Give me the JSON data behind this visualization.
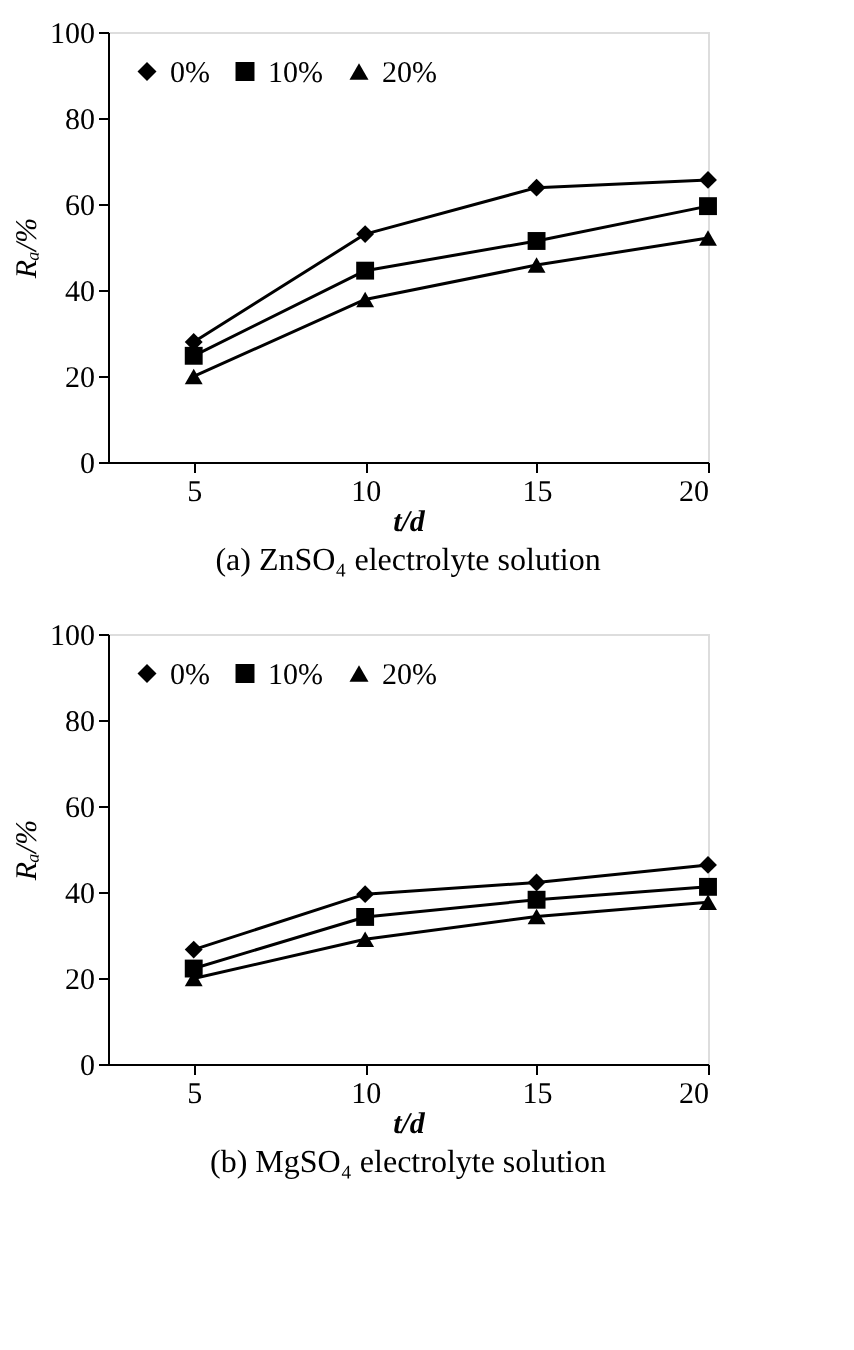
{
  "chart_data": [
    {
      "type": "line",
      "title": "(a) ZnSO₄ electrolyte solution",
      "xlabel": "t/d",
      "ylabel": "Rₐ/%",
      "x": [
        5,
        10,
        15,
        20
      ],
      "xlim": [
        2.5,
        20
      ],
      "xticks": [
        5,
        10,
        15,
        20
      ],
      "ylim": [
        0,
        100
      ],
      "yticks": [
        0,
        20,
        40,
        60,
        80,
        100
      ],
      "legend": "top left",
      "series": [
        {
          "name": "0%",
          "color": "#000000",
          "marker": "diamond",
          "values": [
            27.9,
            53,
            63.8,
            65.6
          ]
        },
        {
          "name": "10%",
          "color": "#000000",
          "marker": "square",
          "values": [
            24.7,
            44.5,
            51.4,
            59.5
          ]
        },
        {
          "name": "20%",
          "color": "#000000",
          "marker": "triangle",
          "values": [
            19.9,
            37.8,
            45.8,
            52.1
          ]
        }
      ]
    },
    {
      "type": "line",
      "title": "(b) MgSO₄ electrolyte solution",
      "xlabel": "t/d",
      "ylabel": "Rₐ/%",
      "x": [
        5,
        10,
        15,
        20
      ],
      "xlim": [
        2.5,
        20
      ],
      "xticks": [
        5,
        10,
        15,
        20
      ],
      "ylim": [
        0,
        100
      ],
      "yticks": [
        0,
        20,
        40,
        60,
        80,
        100
      ],
      "legend": "top left",
      "series": [
        {
          "name": "0%",
          "color": "#000000",
          "marker": "diamond",
          "values": [
            26.6,
            39.5,
            42.2,
            46.3
          ]
        },
        {
          "name": "10%",
          "color": "#000000",
          "marker": "square",
          "values": [
            22.2,
            34.2,
            38.2,
            41.2
          ]
        },
        {
          "name": "20%",
          "color": "#000000",
          "marker": "triangle",
          "values": [
            19.9,
            29,
            34.3,
            37.6
          ]
        }
      ]
    }
  ]
}
